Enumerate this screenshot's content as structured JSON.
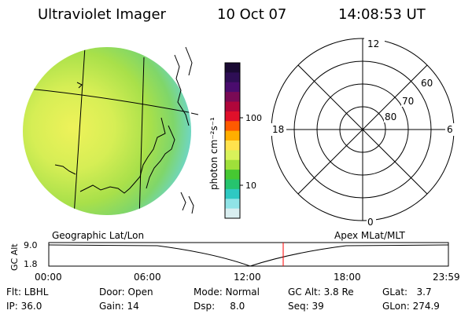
{
  "header": {
    "title": "Ultraviolet Imager",
    "date": "10 Oct 07",
    "time": "14:08:53 UT"
  },
  "colorbar": {
    "unit_label": "photon cm⁻²s⁻¹",
    "ticks": [
      "100",
      "10"
    ],
    "colors": [
      "#1a0a33",
      "#2e0e55",
      "#4a0c6e",
      "#7a0a55",
      "#b0063b",
      "#e0102a",
      "#ff5a00",
      "#ffae00",
      "#ffe34d",
      "#d8f25a",
      "#9fe03a",
      "#46c832",
      "#26c46e",
      "#2ec9c2",
      "#8fe3e6",
      "#d9eef0"
    ]
  },
  "polar": {
    "mlt_labels": {
      "top": "12",
      "right": "6",
      "bottom": "0",
      "left": "18"
    },
    "lat_labels": [
      "60",
      "70",
      "80"
    ]
  },
  "timeline": {
    "left_label": "Geographic Lat/Lon",
    "right_label": "Apex MLat/MLT",
    "ylabel": "GC Alt",
    "yticks": [
      "9.0",
      "1.8"
    ],
    "xticks": [
      "00:00",
      "06:00",
      "12:00",
      "18:00",
      "23:59"
    ],
    "marker_color": "#ff0000"
  },
  "info": {
    "row1": {
      "flt": "Flt: LBHL",
      "door": "Door: Open",
      "mode": "Mode: Normal",
      "gcalt": "GC Alt: 3.8 Re",
      "glat": "GLat:   3.7"
    },
    "row2": {
      "ip": "IP: 36.0",
      "gain": "Gain: 14",
      "dsp": "Dsp:     8.0",
      "seq": "Seq: 39",
      "glon": "GLon: 274.9"
    }
  }
}
